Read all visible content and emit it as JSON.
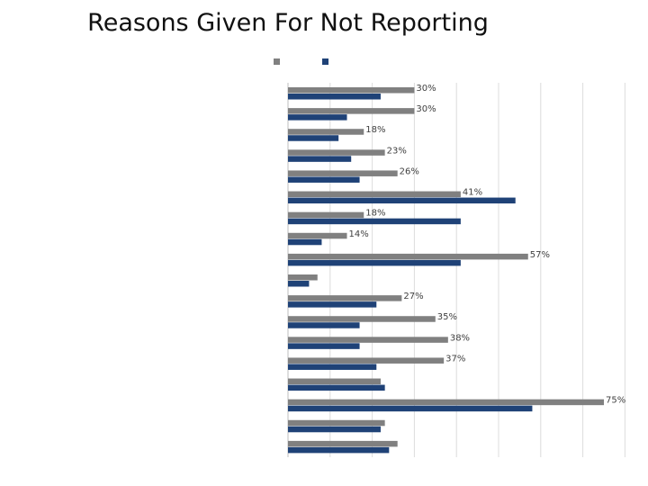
{
  "chart_data": {
    "type": "bar",
    "orientation": "horizontal",
    "title": "Reasons Given For Not Reporting",
    "xlabel": "",
    "ylabel": "",
    "categories": [
      "",
      "",
      "",
      "",
      "",
      "",
      "",
      "",
      "",
      "",
      "",
      "",
      "",
      "",
      "",
      "",
      "",
      ""
    ],
    "series": [
      {
        "color": "#808080",
        "values": [
          30,
          30,
          18,
          23,
          26,
          41,
          18,
          14,
          57,
          7,
          27,
          35,
          38,
          37,
          22,
          75,
          23,
          26
        ],
        "labels": [
          "30%",
          "30%",
          "18%",
          "23%",
          "26%",
          "41%",
          "18%",
          "14%",
          "57%",
          "",
          "27%",
          "35%",
          "38%",
          "37%",
          "",
          "75%",
          "",
          ""
        ]
      },
      {
        "color": "#1f4277",
        "values": [
          22,
          14,
          12,
          15,
          17,
          54,
          41,
          8,
          41,
          5,
          21,
          17,
          17,
          21,
          23,
          58,
          22,
          24
        ],
        "labels": []
      }
    ],
    "xlim": [
      0,
      80
    ],
    "grid": true,
    "legend": "top-center"
  }
}
